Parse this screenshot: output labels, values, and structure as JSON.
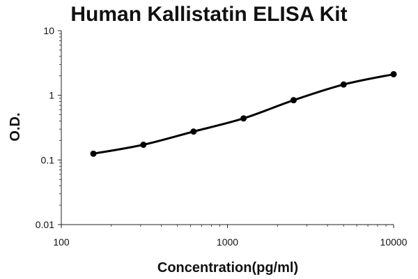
{
  "chart_data": {
    "type": "line",
    "title": "Human Kallistatin ELISA Kit",
    "xlabel": "Concentration(pg/ml)",
    "ylabel": "O.D.",
    "x_scale": "log",
    "y_scale": "log",
    "xlim": [
      100,
      10000
    ],
    "ylim": [
      0.01,
      10
    ],
    "x_ticks": [
      100,
      1000,
      10000
    ],
    "x_tick_labels": [
      "100",
      "1000",
      "10000"
    ],
    "y_ticks": [
      0.01,
      0.1,
      1,
      10
    ],
    "y_tick_labels": [
      "0.01",
      "0.1",
      "1",
      "10"
    ],
    "grid": false,
    "series": [
      {
        "x": [
          156,
          312,
          625,
          1250,
          2500,
          5000,
          10000
        ],
        "y": [
          0.125,
          0.172,
          0.275,
          0.44,
          0.84,
          1.47,
          2.12
        ]
      }
    ],
    "colors": {
      "line": "#000000",
      "marker": "#000000",
      "axis": "#222222",
      "text": "#111111"
    }
  }
}
